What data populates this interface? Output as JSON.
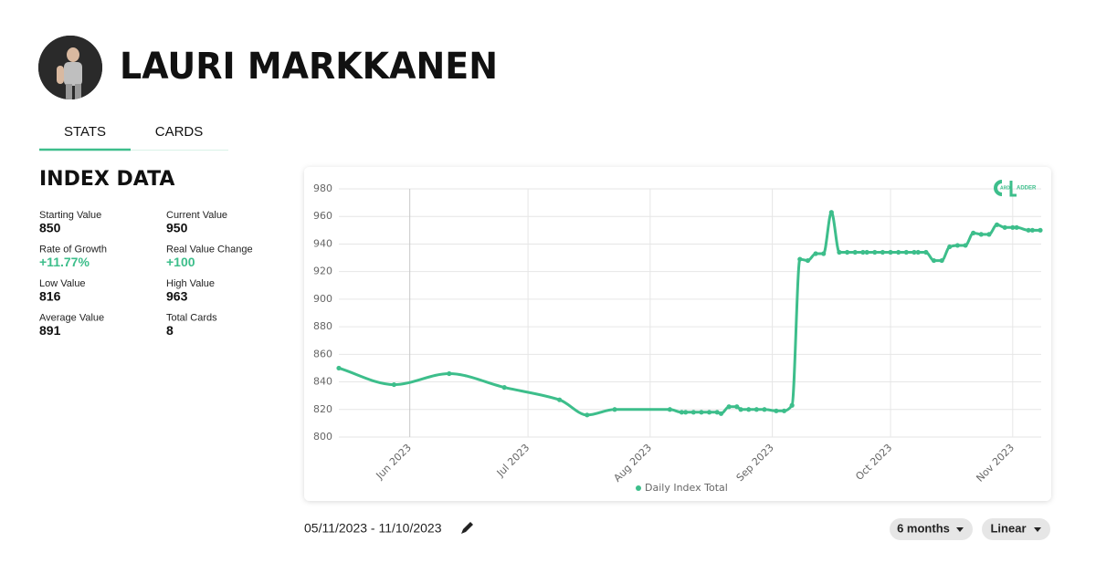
{
  "header": {
    "name": "LAURI MARKKANEN"
  },
  "tabs": [
    "STATS",
    "CARDS"
  ],
  "index": {
    "title": "INDEX DATA",
    "stats": [
      {
        "label": "Starting Value",
        "value": "850"
      },
      {
        "label": "Current Value",
        "value": "950"
      },
      {
        "label": "Rate of Growth",
        "value": "+11.77%"
      },
      {
        "label": "Real Value Change",
        "value": "+100"
      },
      {
        "label": "Low Value",
        "value": "816"
      },
      {
        "label": "High Value",
        "value": "963"
      },
      {
        "label": "Average Value",
        "value": "891"
      },
      {
        "label": "Total Cards",
        "value": "8"
      }
    ]
  },
  "logo": [
    "ARD",
    "ADDER"
  ],
  "chart_data": {
    "type": "line",
    "grid": true,
    "x": [
      "2023-05-14",
      "2023-05-28",
      "2023-06-11",
      "2023-06-25",
      "2023-07-09",
      "2023-07-16",
      "2023-07-23",
      "2023-08-06",
      "2023-08-09",
      "2023-08-10",
      "2023-08-12",
      "2023-08-14",
      "2023-08-16",
      "2023-08-18",
      "2023-08-19",
      "2023-08-21",
      "2023-08-23",
      "2023-08-24",
      "2023-08-26",
      "2023-08-28",
      "2023-08-30",
      "2023-09-02",
      "2023-09-04",
      "2023-09-06",
      "2023-09-08",
      "2023-09-10",
      "2023-09-12",
      "2023-09-14",
      "2023-09-16",
      "2023-09-18",
      "2023-09-20",
      "2023-09-22",
      "2023-09-24",
      "2023-09-25",
      "2023-09-27",
      "2023-09-29",
      "2023-10-01",
      "2023-10-03",
      "2023-10-05",
      "2023-10-07",
      "2023-10-08",
      "2023-10-10",
      "2023-10-12",
      "2023-10-14",
      "2023-10-16",
      "2023-10-18",
      "2023-10-20",
      "2023-10-22",
      "2023-10-24",
      "2023-10-26",
      "2023-10-28",
      "2023-10-30",
      "2023-11-01",
      "2023-11-02",
      "2023-11-05",
      "2023-11-06",
      "2023-11-08"
    ],
    "series": [
      {
        "name": "Daily Index Total",
        "color": "#3dbe8b",
        "values": [
          850,
          838,
          846,
          836,
          827,
          816,
          820,
          820,
          818,
          818,
          818,
          818,
          818,
          818,
          817,
          822,
          822,
          820,
          820,
          820,
          820,
          819,
          819,
          823,
          929,
          928,
          933,
          933,
          963,
          934,
          934,
          934,
          934,
          934,
          934,
          934,
          934,
          934,
          934,
          934,
          934,
          934,
          928,
          928,
          938,
          939,
          939,
          948,
          947,
          947,
          954,
          952,
          952,
          952,
          950,
          950,
          950
        ]
      }
    ],
    "xlim": [
      "2023-05-14",
      "2023-11-08"
    ],
    "xticks": [
      {
        "value": "2023-06-01",
        "label": "Jun 2023"
      },
      {
        "value": "2023-07-01",
        "label": "Jul 2023"
      },
      {
        "value": "2023-08-01",
        "label": "Aug 2023"
      },
      {
        "value": "2023-09-01",
        "label": "Sep 2023"
      },
      {
        "value": "2023-10-01",
        "label": "Oct 2023"
      },
      {
        "value": "2023-11-01",
        "label": "Nov 2023"
      }
    ],
    "ylim": [
      800,
      980
    ],
    "yticks": [
      800,
      820,
      840,
      860,
      880,
      900,
      920,
      940,
      960,
      980
    ]
  },
  "controls": {
    "date_range": "05/11/2023 - 11/10/2023",
    "period": "6 months",
    "scale": "Linear"
  }
}
